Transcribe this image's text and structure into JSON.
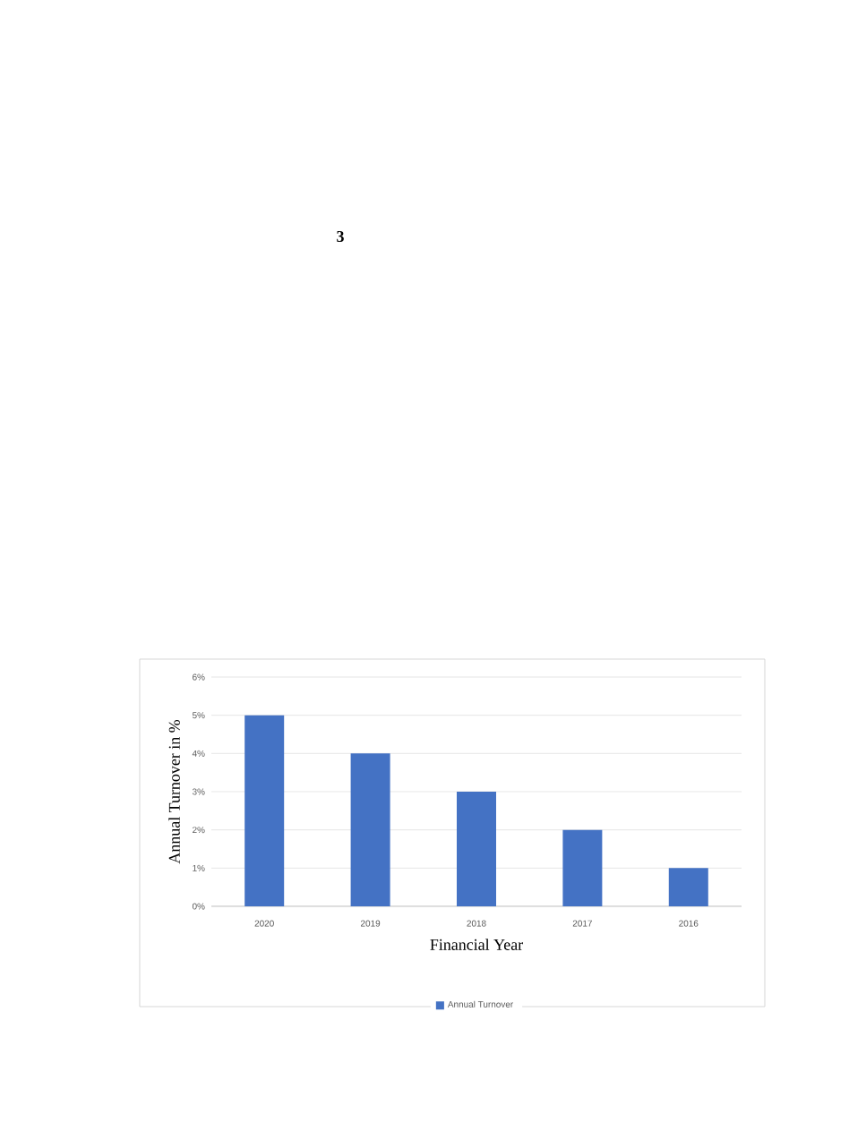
{
  "chart_data": {
    "type": "bar",
    "categories": [
      "2020",
      "2019",
      "2018",
      "2017",
      "2016"
    ],
    "series": [
      {
        "name": "Annual Turnover",
        "color": "#4472c4",
        "values": [
          5,
          4,
          3,
          2,
          1
        ]
      }
    ],
    "xlabel": "Financial Year",
    "ylabel": "Annual Turnover in %",
    "ylim": [
      0,
      6
    ],
    "yticks": [
      {
        "value": 0,
        "label": "0%"
      },
      {
        "value": 1,
        "label": "1%"
      },
      {
        "value": 2,
        "label": "2%"
      },
      {
        "value": 3,
        "label": "3%"
      },
      {
        "value": 4,
        "label": "4%"
      },
      {
        "value": 5,
        "label": "5%"
      },
      {
        "value": 6,
        "label": "6%"
      }
    ],
    "grid": "y",
    "legend": "bottom",
    "annotations": [
      "3"
    ]
  }
}
